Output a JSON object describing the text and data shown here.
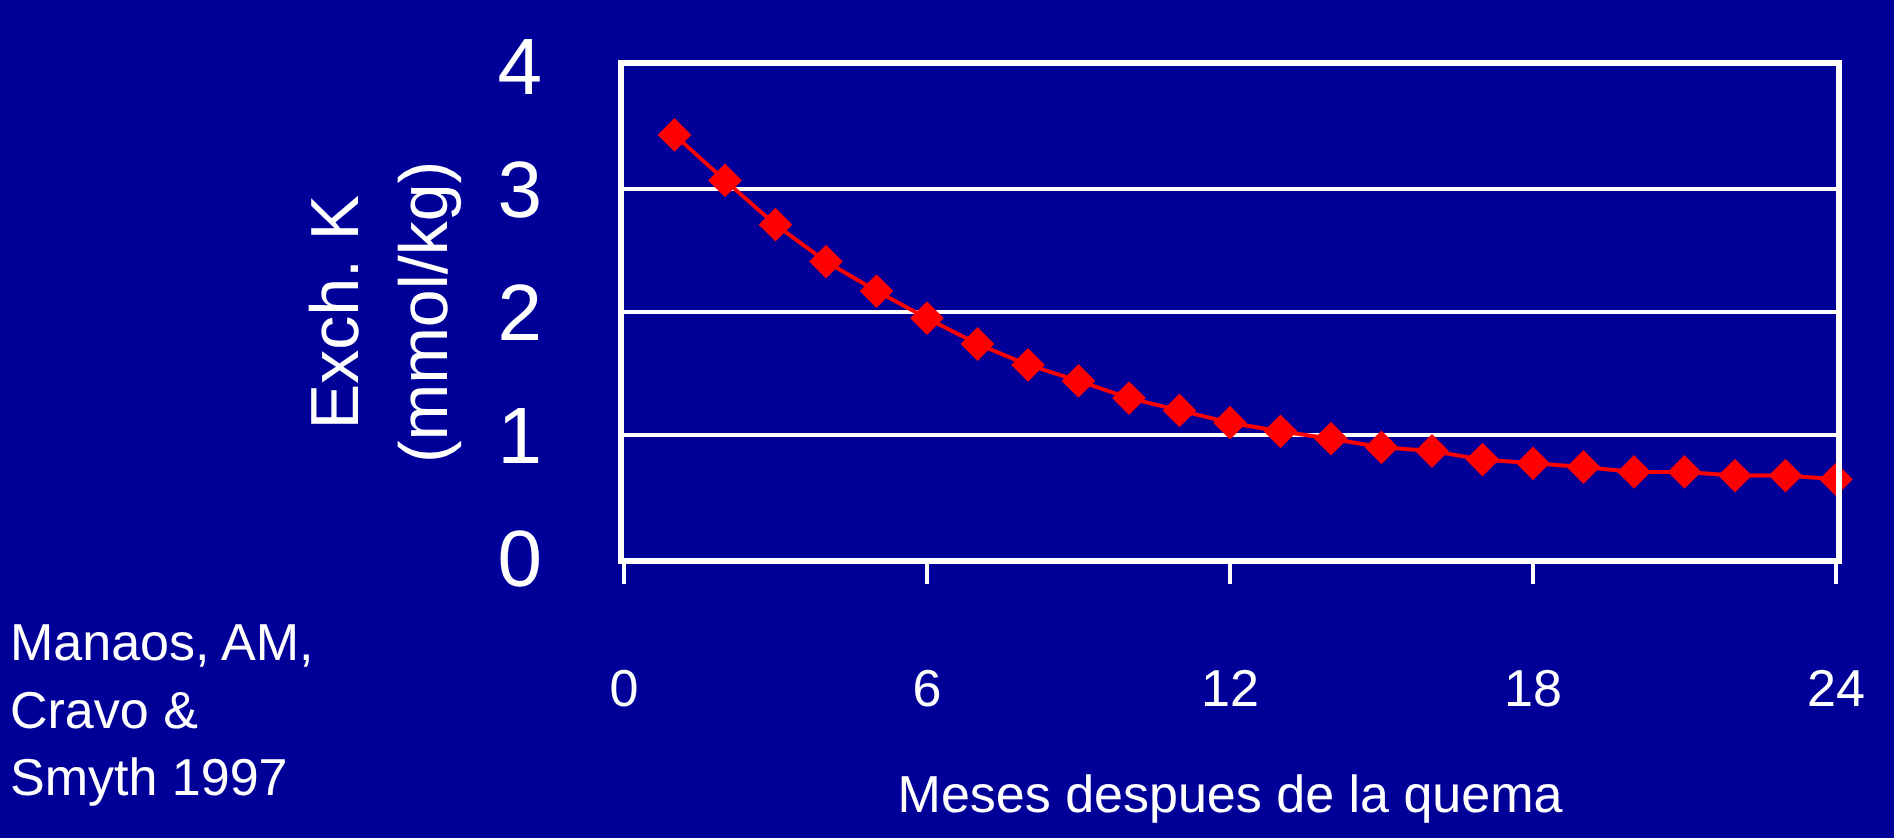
{
  "chart_data": {
    "type": "line",
    "xlabel": "Meses despues de la quema",
    "ylabel": "Exch. K\n(mmol/kg)",
    "x": [
      1,
      2,
      3,
      4,
      5,
      6,
      7,
      8,
      9,
      10,
      11,
      12,
      13,
      14,
      15,
      16,
      17,
      18,
      19,
      20,
      21,
      22,
      23,
      24
    ],
    "series": [
      {
        "color": "#ff0000",
        "values": [
          3.44,
          3.07,
          2.71,
          2.41,
          2.17,
          1.95,
          1.74,
          1.57,
          1.44,
          1.3,
          1.2,
          1.1,
          1.03,
          0.97,
          0.9,
          0.87,
          0.8,
          0.77,
          0.74,
          0.7,
          0.7,
          0.67,
          0.67,
          0.64
        ]
      }
    ],
    "xlim": [
      0,
      24
    ],
    "xticks": [
      0,
      6,
      12,
      18,
      24
    ],
    "ylim": [
      0,
      4
    ],
    "yticks": [
      0,
      1,
      2,
      3,
      4
    ],
    "grid": "y",
    "marker": "diamond",
    "line_style": "solid",
    "legend": false,
    "annotations": [
      "Manaos, AM,\nCravo &\nSmyth 1997"
    ]
  }
}
